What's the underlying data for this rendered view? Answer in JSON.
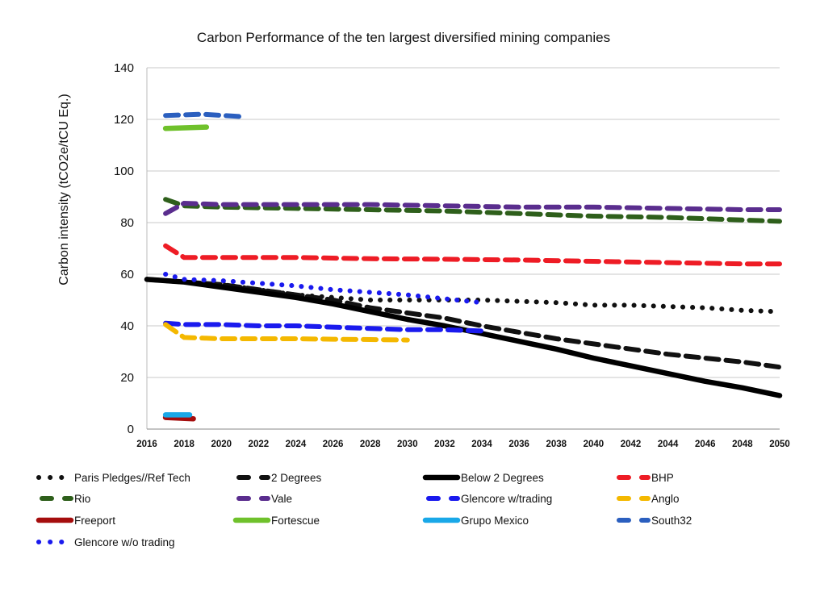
{
  "chart_data": {
    "type": "line",
    "title": "Carbon Performance of the ten largest diversified mining companies",
    "xlabel": "",
    "ylabel": "Carbon intensity (tCO2e/tCU Eq.)",
    "xlim": [
      2016,
      2050
    ],
    "ylim": [
      0,
      140
    ],
    "yticks": [
      0,
      20,
      40,
      60,
      80,
      100,
      120,
      140
    ],
    "xticks": [
      2016,
      2018,
      2020,
      2022,
      2024,
      2026,
      2028,
      2030,
      2032,
      2034,
      2036,
      2038,
      2040,
      2042,
      2044,
      2046,
      2048,
      2050
    ],
    "grid": "horizontal",
    "legend_position": "bottom",
    "series": [
      {
        "name": "Paris Pledges//Ref Tech",
        "color": "#111111",
        "style": "dotted",
        "x": [
          2016,
          2018,
          2020,
          2022,
          2024,
          2026,
          2028,
          2030,
          2032,
          2034,
          2036,
          2038,
          2040,
          2042,
          2044,
          2046,
          2048,
          2050
        ],
        "y": [
          58,
          57,
          56,
          54,
          52,
          51,
          50,
          50,
          50,
          50,
          49.5,
          49,
          48,
          48,
          47.5,
          47,
          46,
          45.5
        ]
      },
      {
        "name": "2 Degrees",
        "color": "#111111",
        "style": "dashed",
        "x": [
          2016,
          2018,
          2020,
          2022,
          2024,
          2026,
          2028,
          2030,
          2032,
          2034,
          2036,
          2038,
          2040,
          2042,
          2044,
          2046,
          2048,
          2050
        ],
        "y": [
          58,
          57,
          56,
          54,
          52,
          50,
          47,
          45,
          43,
          40,
          37.5,
          35,
          33,
          31,
          29,
          27.5,
          26,
          24
        ]
      },
      {
        "name": "Below 2 Degrees",
        "color": "#000000",
        "style": "solid",
        "x": [
          2016,
          2018,
          2020,
          2022,
          2024,
          2026,
          2028,
          2030,
          2032,
          2034,
          2036,
          2038,
          2040,
          2042,
          2044,
          2046,
          2048,
          2050
        ],
        "y": [
          58,
          57,
          55,
          53,
          51,
          48.5,
          45.5,
          42.5,
          40,
          37,
          34,
          31,
          27.5,
          24.5,
          21.5,
          18.5,
          16,
          13
        ]
      },
      {
        "name": "BHP",
        "color": "#ee1c25",
        "style": "dashed",
        "x": [
          2017,
          2018,
          2020,
          2024,
          2028,
          2032,
          2036,
          2040,
          2044,
          2048,
          2050
        ],
        "y": [
          71,
          66.5,
          66.5,
          66.5,
          66,
          65.8,
          65.5,
          65,
          64.5,
          64,
          64
        ]
      },
      {
        "name": "Rio",
        "color": "#2e5f1b",
        "style": "dashed",
        "x": [
          2017,
          2018,
          2020,
          2024,
          2028,
          2032,
          2036,
          2040,
          2044,
          2048,
          2050
        ],
        "y": [
          89,
          86.5,
          86,
          85.5,
          85,
          84.5,
          83.5,
          82.5,
          82,
          81,
          80.5
        ]
      },
      {
        "name": "Vale",
        "color": "#5a2d8e",
        "style": "dashed",
        "x": [
          2017,
          2018,
          2020,
          2024,
          2028,
          2032,
          2036,
          2040,
          2044,
          2048,
          2050
        ],
        "y": [
          83.5,
          87.5,
          87,
          87,
          87,
          86.5,
          86,
          86,
          85.5,
          85,
          85
        ]
      },
      {
        "name": "Glencore w/trading",
        "color": "#1a1aee",
        "style": "dashed",
        "x": [
          2017,
          2018,
          2020,
          2022,
          2024,
          2026,
          2028,
          2030,
          2032,
          2034
        ],
        "y": [
          41,
          40.5,
          40.5,
          40,
          40,
          39.5,
          39,
          38.5,
          38.5,
          38
        ]
      },
      {
        "name": "Anglo",
        "color": "#f4b800",
        "style": "dashed",
        "x": [
          2017,
          2018,
          2020,
          2022,
          2024,
          2026,
          2028,
          2030
        ],
        "y": [
          40.5,
          35.5,
          35,
          35,
          35,
          34.8,
          34.7,
          34.5
        ]
      },
      {
        "name": "Freeport",
        "color": "#a50d0d",
        "style": "solid",
        "x": [
          2017,
          2018.5
        ],
        "y": [
          4.5,
          4
        ]
      },
      {
        "name": "Fortescue",
        "color": "#6fc12b",
        "style": "solid",
        "x": [
          2017,
          2019.2
        ],
        "y": [
          116.5,
          117
        ]
      },
      {
        "name": "Grupo Mexico",
        "color": "#19a8e8",
        "style": "solid",
        "x": [
          2017,
          2018.3
        ],
        "y": [
          5.5,
          5.5
        ]
      },
      {
        "name": "South32",
        "color": "#2b5fbf",
        "style": "dashed",
        "x": [
          2017,
          2019,
          2021.2
        ],
        "y": [
          121.5,
          122,
          121
        ]
      },
      {
        "name": "Glencore w/o trading",
        "color": "#1a1aee",
        "style": "dotted",
        "x": [
          2017,
          2018,
          2020,
          2022,
          2024,
          2026,
          2028,
          2030,
          2032,
          2034
        ],
        "y": [
          60,
          58,
          57.5,
          56.5,
          55.5,
          54,
          53,
          52,
          50.5,
          49
        ]
      }
    ]
  }
}
